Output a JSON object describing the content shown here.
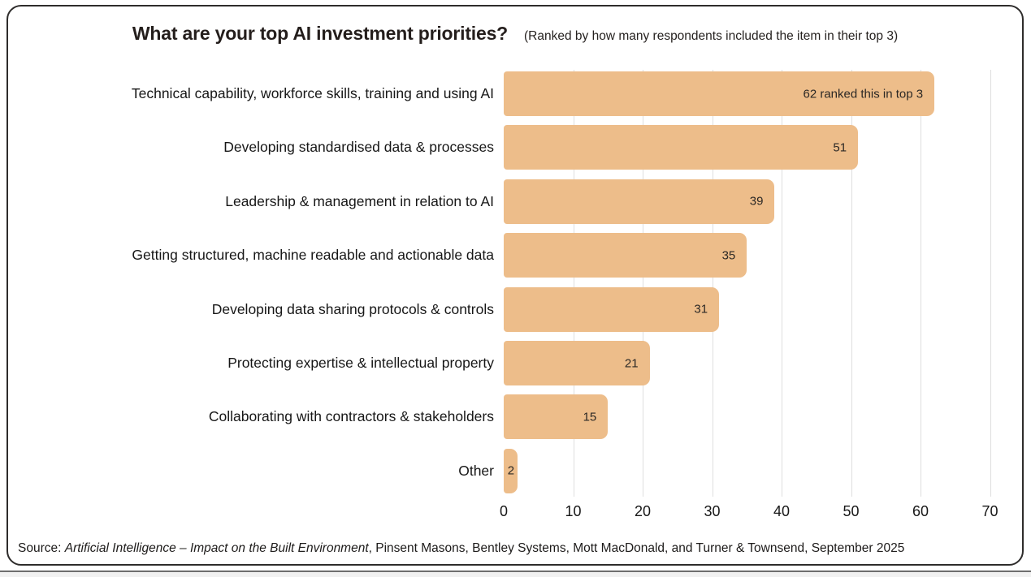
{
  "header": {
    "title": "What are your top AI investment priorities?",
    "subtitle": "(Ranked by how many respondents included the item in their top 3)"
  },
  "chart_data": {
    "type": "bar",
    "orientation": "horizontal",
    "title": "What are your top AI investment priorities?",
    "subtitle": "(Ranked by how many respondents included the item in their top 3)",
    "categories": [
      "Technical capability, workforce skills, training and using AI",
      "Developing standardised data & processes",
      "Leadership & management in relation to AI",
      "Getting structured, machine readable and actionable data",
      "Developing data sharing protocols & controls",
      "Protecting expertise & intellectual property",
      "Collaborating with contractors & stakeholders",
      "Other"
    ],
    "values": [
      62,
      51,
      39,
      35,
      31,
      21,
      15,
      2
    ],
    "bar_labels": [
      "62 ranked this in top 3",
      "51",
      "39",
      "35",
      "31",
      "21",
      "15",
      "2"
    ],
    "xlabel": "",
    "ylabel": "",
    "xlim": [
      0,
      70
    ],
    "xticks": [
      0,
      10,
      20,
      30,
      40,
      50,
      60,
      70
    ],
    "grid": "vertical",
    "legend": "none",
    "bar_color": "#edbd8a",
    "gridline_color": "#dedede"
  },
  "source": {
    "prefix": "Source: ",
    "italic": "Artificial Intelligence – Impact on the Built Environment",
    "rest": ", Pinsent Masons, Bentley Systems, Mott MacDonald, and Turner & Townsend, September 2025"
  }
}
